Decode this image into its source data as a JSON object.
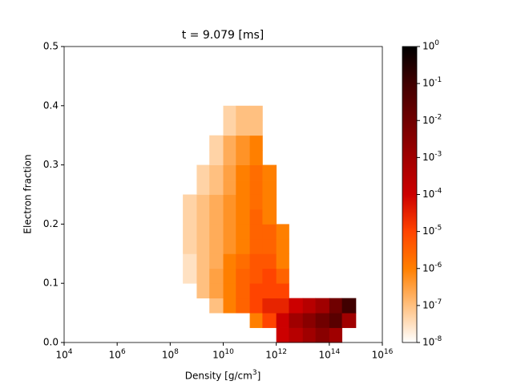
{
  "chart_data": {
    "type": "heatmap",
    "title": "t = 9.079 [ms]",
    "x_label": "Density [g/cm^3]",
    "y_label": "Electron fraction",
    "xscale": "log",
    "xlim": [
      10000,
      1e+16
    ],
    "xticks": [
      {
        "value": 10000,
        "label": "10^4"
      },
      {
        "value": 1000000,
        "label": "10^6"
      },
      {
        "value": 100000000,
        "label": "10^8"
      },
      {
        "value": 10000000000,
        "label": "10^10"
      },
      {
        "value": 1000000000000,
        "label": "10^12"
      },
      {
        "value": 100000000000000,
        "label": "10^14"
      },
      {
        "value": 1e+16,
        "label": "10^16"
      }
    ],
    "ylim": [
      0,
      0.5
    ],
    "yticks": [
      0.0,
      0.1,
      0.2,
      0.3,
      0.4,
      0.5
    ],
    "xbins": [
      100000000.0,
      300000000.0,
      1000000000.0,
      3000000000.0,
      10000000000.0,
      30000000000.0,
      100000000000.0,
      300000000000.0,
      1000000000000.0,
      3000000000000.0,
      10000000000000.0,
      30000000000000.0,
      100000000000000.0,
      300000000000000.0,
      1000000000000000.0
    ],
    "ybins": [
      0,
      0.025,
      0.05,
      0.075,
      0.1,
      0.125,
      0.15,
      0.175,
      0.2,
      0.225,
      0.25,
      0.275,
      0.3,
      0.325,
      0.35,
      0.375,
      0.4
    ],
    "z": [
      [
        null,
        null,
        null,
        null,
        null,
        null,
        null,
        null,
        0.0001,
        0.0003,
        0.001,
        0.003,
        0.001,
        null
      ],
      [
        null,
        null,
        null,
        null,
        null,
        null,
        1e-06,
        1e-05,
        0.0001,
        0.001,
        0.003,
        0.01,
        0.03,
        0.001
      ],
      [
        null,
        null,
        null,
        1e-07,
        1e-06,
        3e-06,
        1e-05,
        3e-05,
        3e-05,
        0.0001,
        0.0003,
        0.001,
        0.01,
        0.1
      ],
      [
        null,
        null,
        1e-07,
        3e-07,
        1e-06,
        3e-06,
        1e-05,
        1e-05,
        1e-05,
        null,
        null,
        null,
        null,
        null
      ],
      [
        null,
        3e-08,
        1e-07,
        3e-07,
        1e-06,
        3e-06,
        5e-06,
        1e-05,
        3e-06,
        null,
        null,
        null,
        null,
        null
      ],
      [
        null,
        3e-08,
        1e-07,
        2e-07,
        1e-06,
        2e-06,
        5e-06,
        5e-06,
        1e-06,
        null,
        null,
        null,
        null,
        null
      ],
      [
        1e-08,
        5e-08,
        1e-07,
        2e-07,
        5e-07,
        1e-06,
        3e-06,
        3e-06,
        1e-06,
        null,
        null,
        null,
        null,
        null
      ],
      [
        1e-08,
        5e-08,
        1e-07,
        2e-07,
        5e-07,
        1e-06,
        3e-06,
        3e-06,
        1e-06,
        null,
        null,
        null,
        null,
        null
      ],
      [
        1e-08,
        5e-08,
        1e-07,
        2e-07,
        5e-07,
        1e-06,
        3e-06,
        1e-06,
        null,
        null,
        null,
        null,
        null,
        null
      ],
      [
        1e-08,
        5e-08,
        1e-07,
        2e-07,
        5e-07,
        1e-06,
        2e-06,
        1e-06,
        null,
        null,
        null,
        null,
        null,
        null
      ],
      [
        null,
        null,
        5e-08,
        1e-07,
        3e-07,
        1e-06,
        2e-06,
        1e-06,
        null,
        null,
        null,
        null,
        null,
        null
      ],
      [
        null,
        null,
        5e-08,
        1e-07,
        3e-07,
        1e-06,
        2e-06,
        1e-06,
        null,
        null,
        null,
        null,
        null,
        null
      ],
      [
        null,
        null,
        null,
        5e-08,
        2e-07,
        5e-07,
        1e-06,
        null,
        null,
        null,
        null,
        null,
        null,
        null
      ],
      [
        null,
        null,
        null,
        5e-08,
        2e-07,
        5e-07,
        1e-06,
        null,
        null,
        null,
        null,
        null,
        null,
        null
      ],
      [
        null,
        null,
        null,
        null,
        5e-08,
        1e-07,
        1e-07,
        null,
        null,
        null,
        null,
        null,
        null,
        null
      ],
      [
        null,
        null,
        null,
        null,
        5e-08,
        1e-07,
        1e-07,
        null,
        null,
        null,
        null,
        null,
        null,
        null
      ]
    ],
    "clim": [
      1e-08,
      1
    ],
    "cticks": [
      {
        "value": 1e-08,
        "label": "10^-8"
      },
      {
        "value": 1e-07,
        "label": "10^-7"
      },
      {
        "value": 1e-06,
        "label": "10^-6"
      },
      {
        "value": 1e-05,
        "label": "10^-5"
      },
      {
        "value": 0.0001,
        "label": "10^-4"
      },
      {
        "value": 0.001,
        "label": "10^-3"
      },
      {
        "value": 0.01,
        "label": "10^-2"
      },
      {
        "value": 0.1,
        "label": "10^-1"
      },
      {
        "value": 1,
        "label": "10^0"
      }
    ],
    "colormap": [
      "#ffffff",
      "#ffc080",
      "#ff7f00",
      "#ff4400",
      "#cc0000",
      "#a00000",
      "#700000",
      "#400000",
      "#000000"
    ]
  }
}
